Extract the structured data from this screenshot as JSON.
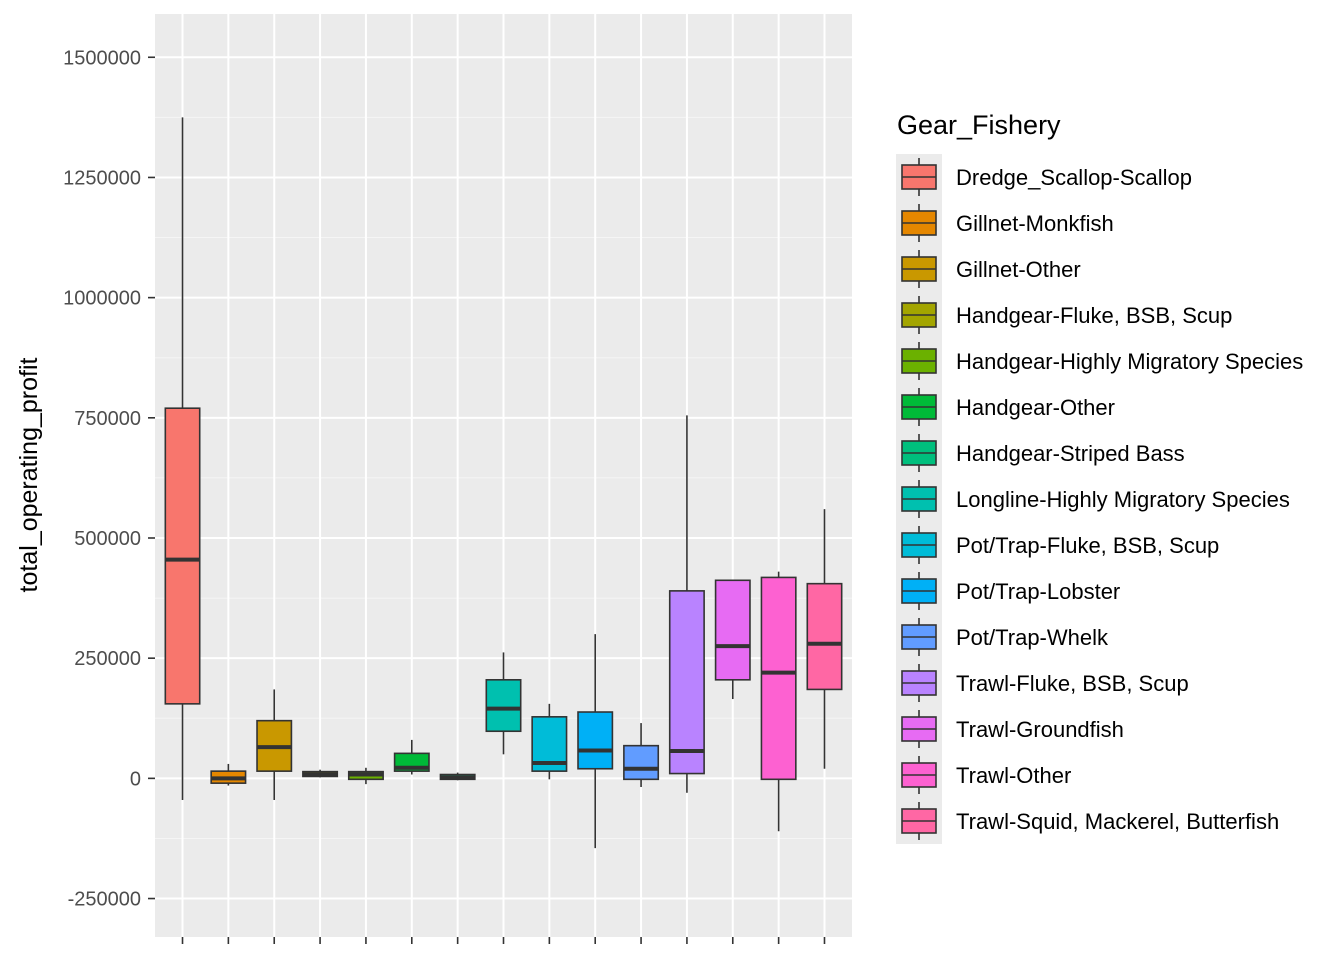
{
  "chart_data": {
    "type": "boxplot",
    "title": "",
    "xlabel": "",
    "ylabel": "total_operating_profit",
    "ylim": [
      -330000,
      1590000
    ],
    "y_ticks": [
      -250000,
      0,
      250000,
      500000,
      750000,
      1000000,
      1250000,
      1500000
    ],
    "y_tick_labels": [
      "-250000",
      "0",
      "250000",
      "500000",
      "750000",
      "1000000",
      "1250000",
      "1500000"
    ],
    "grid": true,
    "legend": {
      "title": "Gear_Fishery",
      "placement": "right"
    },
    "series": [
      {
        "name": "Dredge_Scallop-Scallop",
        "color": "#F8766D",
        "min": -45000,
        "q1": 155000,
        "median": 455000,
        "q3": 770000,
        "max": 1375000
      },
      {
        "name": "Gillnet-Monkfish",
        "color": "#E58700",
        "min": -15000,
        "q1": -10000,
        "median": 0,
        "q3": 15000,
        "max": 30000
      },
      {
        "name": "Gillnet-Other",
        "color": "#C99800",
        "min": -45000,
        "q1": 15000,
        "median": 65000,
        "q3": 120000,
        "max": 185000
      },
      {
        "name": "Handgear-Fluke, BSB, Scup",
        "color": "#A3A500",
        "min": 2000,
        "q1": 4000,
        "median": 8000,
        "q3": 14000,
        "max": 18000
      },
      {
        "name": "Handgear-Highly Migratory Species",
        "color": "#6BB100",
        "min": -12000,
        "q1": -2000,
        "median": 8000,
        "q3": 14000,
        "max": 22000
      },
      {
        "name": "Handgear-Other",
        "color": "#00BA38",
        "min": 8000,
        "q1": 15000,
        "median": 22000,
        "q3": 52000,
        "max": 80000
      },
      {
        "name": "Handgear-Striped Bass",
        "color": "#00BF7D",
        "min": -4000,
        "q1": -2000,
        "median": 2000,
        "q3": 8000,
        "max": 12000
      },
      {
        "name": "Longline-Highly Migratory Species",
        "color": "#00C0AF",
        "min": 50000,
        "q1": 98000,
        "median": 145000,
        "q3": 205000,
        "max": 262000
      },
      {
        "name": "Pot/Trap-Fluke, BSB, Scup",
        "color": "#00BCD8",
        "min": -2000,
        "q1": 15000,
        "median": 32000,
        "q3": 128000,
        "max": 155000
      },
      {
        "name": "Pot/Trap-Lobster",
        "color": "#00B0F6",
        "min": -145000,
        "q1": 20000,
        "median": 58000,
        "q3": 138000,
        "max": 300000
      },
      {
        "name": "Pot/Trap-Whelk",
        "color": "#619CFF",
        "min": -18000,
        "q1": -2000,
        "median": 20000,
        "q3": 68000,
        "max": 115000
      },
      {
        "name": "Trawl-Fluke, BSB, Scup",
        "color": "#B983FF",
        "min": -30000,
        "q1": 10000,
        "median": 57000,
        "q3": 390000,
        "max": 755000
      },
      {
        "name": "Trawl-Groundfish",
        "color": "#E76BF3",
        "min": 165000,
        "q1": 205000,
        "median": 275000,
        "q3": 412000,
        "max": 412000
      },
      {
        "name": "Trawl-Other",
        "color": "#FD61D1",
        "min": -110000,
        "q1": -2000,
        "median": 220000,
        "q3": 418000,
        "max": 430000
      },
      {
        "name": "Trawl-Squid, Mackerel, Butterfish",
        "color": "#FF67A4",
        "min": 20000,
        "q1": 185000,
        "median": 280000,
        "q3": 405000,
        "max": 560000
      }
    ]
  }
}
